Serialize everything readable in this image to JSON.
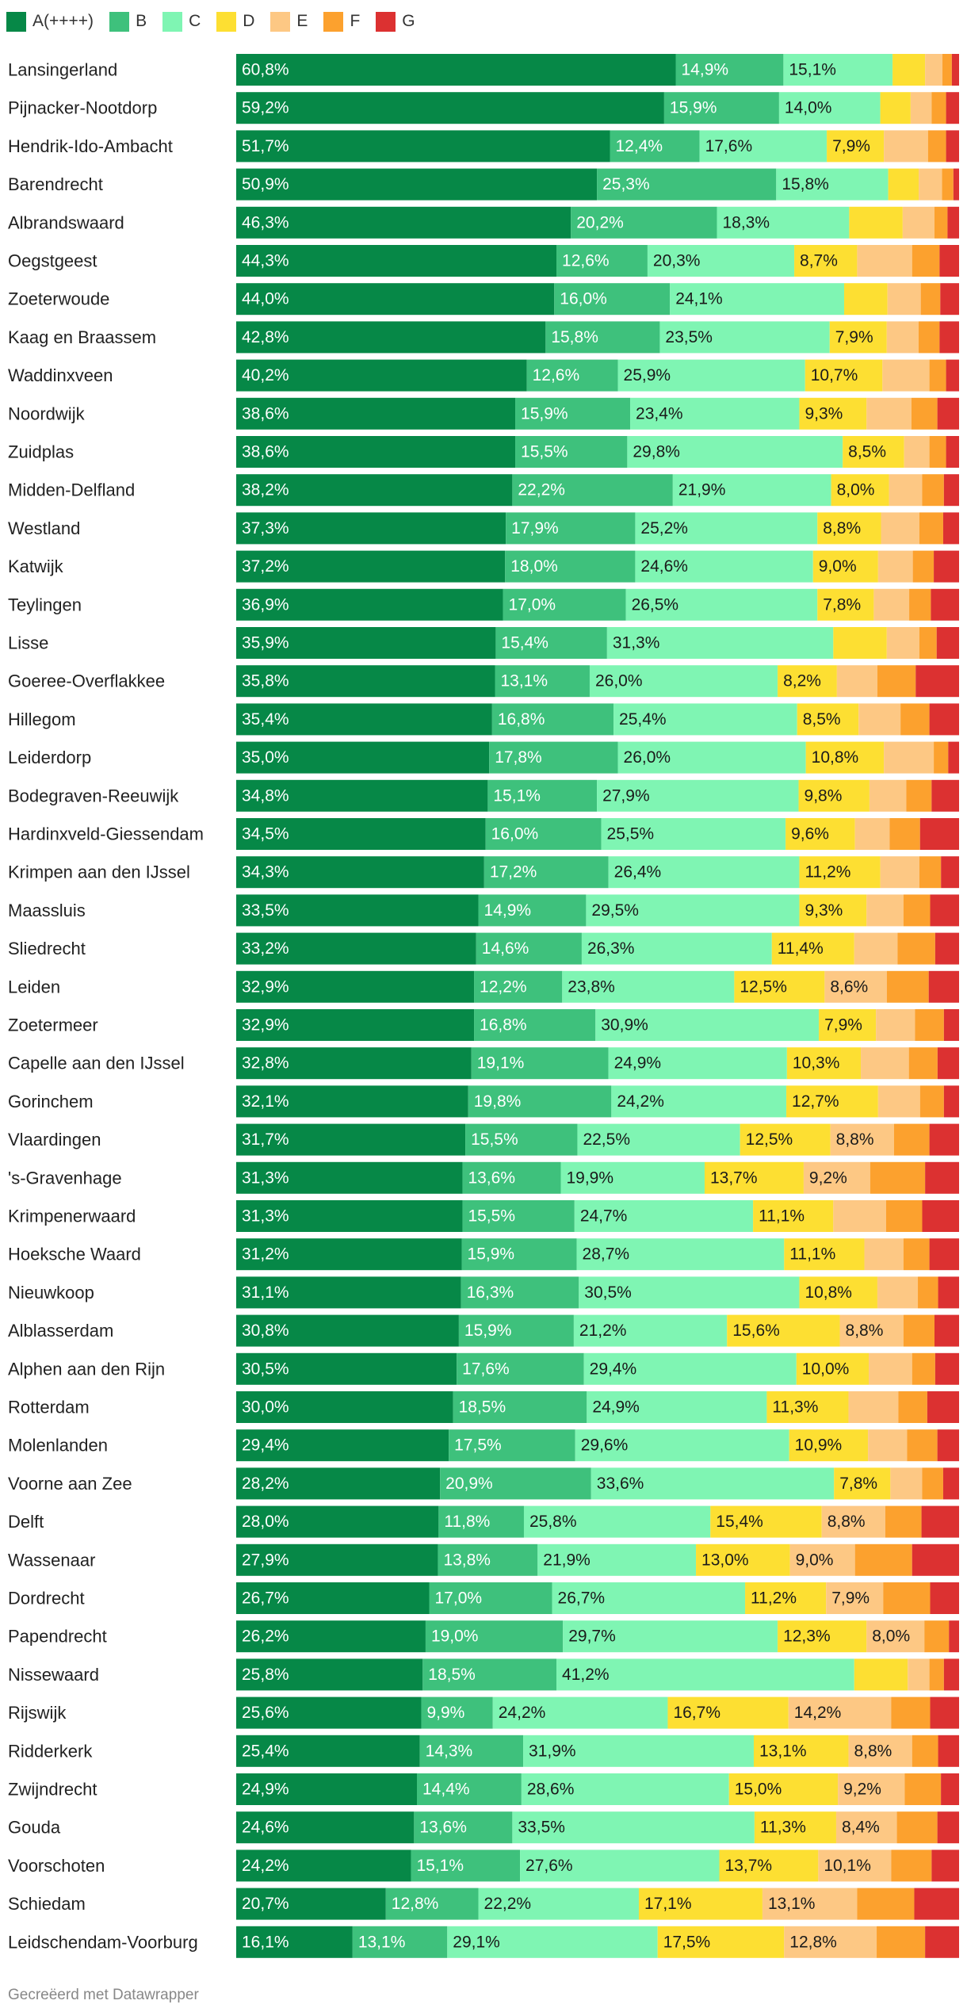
{
  "chart_data": {
    "type": "bar",
    "orientation": "horizontal",
    "stacked": true,
    "normalized": true,
    "unit": "%",
    "series": [
      {
        "name": "A(++++)",
        "color": "#068847",
        "values": [
          60.8,
          59.2,
          51.7,
          50.9,
          46.3,
          44.3,
          44.0,
          42.8,
          40.2,
          38.6,
          38.6,
          38.2,
          37.3,
          37.2,
          36.9,
          35.9,
          35.8,
          35.4,
          35.0,
          34.8,
          34.5,
          34.3,
          33.5,
          33.2,
          32.9,
          32.9,
          32.8,
          32.1,
          31.7,
          31.3,
          31.3,
          31.2,
          31.1,
          30.8,
          30.5,
          30.0,
          29.4,
          28.2,
          28.0,
          27.9,
          26.7,
          26.2,
          25.8,
          25.6,
          25.4,
          24.9,
          24.6,
          24.2,
          20.7,
          16.1
        ]
      },
      {
        "name": "B",
        "color": "#3ec17c",
        "values": [
          14.9,
          15.9,
          12.4,
          25.3,
          20.2,
          12.6,
          16.0,
          15.8,
          12.6,
          15.9,
          15.5,
          22.2,
          17.9,
          18.0,
          17.0,
          15.4,
          13.1,
          16.8,
          17.8,
          15.1,
          16.0,
          17.2,
          14.9,
          14.6,
          12.2,
          16.8,
          19.1,
          19.8,
          15.5,
          13.6,
          15.5,
          15.9,
          16.3,
          15.9,
          17.6,
          18.5,
          17.5,
          20.9,
          11.8,
          13.8,
          17.0,
          19.0,
          18.5,
          9.9,
          14.3,
          14.4,
          13.6,
          15.1,
          12.8,
          13.1
        ]
      },
      {
        "name": "C",
        "color": "#7ff5b3",
        "values": [
          15.1,
          14.0,
          17.6,
          15.8,
          18.3,
          20.3,
          24.1,
          23.5,
          25.9,
          23.4,
          29.8,
          21.9,
          25.2,
          24.6,
          26.5,
          31.3,
          26.0,
          25.4,
          26.0,
          27.9,
          25.5,
          26.4,
          29.5,
          26.3,
          23.8,
          30.9,
          24.9,
          24.2,
          22.5,
          19.9,
          24.7,
          28.7,
          30.5,
          21.2,
          29.4,
          24.9,
          29.6,
          33.6,
          25.8,
          21.9,
          26.7,
          29.7,
          41.2,
          24.2,
          31.9,
          28.6,
          33.5,
          27.6,
          22.2,
          29.1
        ]
      },
      {
        "name": "D",
        "color": "#fddf32",
        "values": [
          4.5,
          4.2,
          7.9,
          4.3,
          7.4,
          8.7,
          6.0,
          7.9,
          10.7,
          9.3,
          8.5,
          8.0,
          8.8,
          9.0,
          7.8,
          7.4,
          8.2,
          8.5,
          10.8,
          9.8,
          9.6,
          11.2,
          9.3,
          11.4,
          12.5,
          7.9,
          10.3,
          12.7,
          12.5,
          13.7,
          11.1,
          11.1,
          10.8,
          15.6,
          10.0,
          11.3,
          10.9,
          7.8,
          15.4,
          13.0,
          11.2,
          12.3,
          7.4,
          16.7,
          13.1,
          15.0,
          11.3,
          13.7,
          17.1,
          17.5
        ]
      },
      {
        "name": "E",
        "color": "#fdc884",
        "values": [
          2.4,
          2.9,
          6.1,
          3.3,
          4.4,
          7.6,
          4.6,
          4.4,
          6.5,
          6.2,
          3.5,
          4.6,
          5.3,
          4.8,
          4.9,
          4.5,
          5.6,
          5.8,
          6.9,
          5.1,
          4.8,
          5.4,
          5.1,
          6.0,
          8.6,
          5.4,
          6.7,
          5.8,
          8.8,
          9.2,
          7.3,
          5.4,
          5.6,
          8.8,
          6.0,
          6.9,
          5.4,
          4.4,
          8.8,
          9.0,
          7.9,
          8.0,
          3.0,
          14.2,
          8.8,
          9.2,
          8.4,
          10.1,
          13.1,
          12.8
        ]
      },
      {
        "name": "F",
        "color": "#fca12e",
        "values": [
          1.3,
          2.0,
          2.5,
          1.6,
          1.8,
          3.8,
          2.7,
          2.9,
          2.3,
          3.6,
          2.3,
          3.0,
          3.3,
          2.9,
          3.0,
          2.4,
          5.3,
          4.0,
          2.0,
          3.5,
          4.2,
          3.0,
          3.7,
          5.2,
          5.8,
          4.0,
          4.0,
          3.3,
          4.9,
          7.6,
          5.0,
          3.6,
          2.8,
          4.3,
          3.2,
          4.0,
          4.2,
          2.9,
          5.0,
          7.9,
          6.5,
          3.4,
          2.0,
          5.4,
          3.6,
          5.0,
          5.6,
          5.6,
          7.9,
          6.7
        ]
      },
      {
        "name": "G",
        "color": "#dc3131",
        "values": [
          1.0,
          1.8,
          1.8,
          0.8,
          1.6,
          2.7,
          2.6,
          2.7,
          1.8,
          3.0,
          1.8,
          2.1,
          2.2,
          3.5,
          3.9,
          3.1,
          6.0,
          4.1,
          1.5,
          3.8,
          5.4,
          2.5,
          4.0,
          3.3,
          4.2,
          2.1,
          3.0,
          2.1,
          4.1,
          4.7,
          5.1,
          4.1,
          2.9,
          3.4,
          3.3,
          4.4,
          3.0,
          2.2,
          5.2,
          6.5,
          4.0,
          1.4,
          2.1,
          4.0,
          2.9,
          2.5,
          3.0,
          3.8,
          6.2,
          4.7
        ]
      }
    ],
    "categories": [
      "Lansingerland",
      "Pijnacker-Nootdorp",
      "Hendrik-Ido-Ambacht",
      "Barendrecht",
      "Albrandswaard",
      "Oegstgeest",
      "Zoeterwoude",
      "Kaag en Braassem",
      "Waddinxveen",
      "Noordwijk",
      "Zuidplas",
      "Midden-Delfland",
      "Westland",
      "Katwijk",
      "Teylingen",
      "Lisse",
      "Goeree-Overflakkee",
      "Hillegom",
      "Leiderdorp",
      "Bodegraven-Reeuwijk",
      "Hardinxveld-Giessendam",
      "Krimpen aan den IJssel",
      "Maassluis",
      "Sliedrecht",
      "Leiden",
      "Zoetermeer",
      "Capelle aan den IJssel",
      "Gorinchem",
      "Vlaardingen",
      "'s-Gravenhage",
      "Krimpenerwaard",
      "Hoeksche Waard",
      "Nieuwkoop",
      "Alblasserdam",
      "Alphen aan den Rijn",
      "Rotterdam",
      "Molenlanden",
      "Voorne aan Zee",
      "Delft",
      "Wassenaar",
      "Dordrecht",
      "Papendrecht",
      "Nissewaard",
      "Rijswijk",
      "Ridderkerk",
      "Zwijndrecht",
      "Gouda",
      "Voorschoten",
      "Schiedam",
      "Leidschendam-Voorburg"
    ],
    "labeled_series_count": 5,
    "label_min_value": 7.8,
    "xlim": [
      0,
      100
    ],
    "legend_position": "top-left",
    "grid": false,
    "footer": "Gecreëerd met Datawrapper"
  }
}
